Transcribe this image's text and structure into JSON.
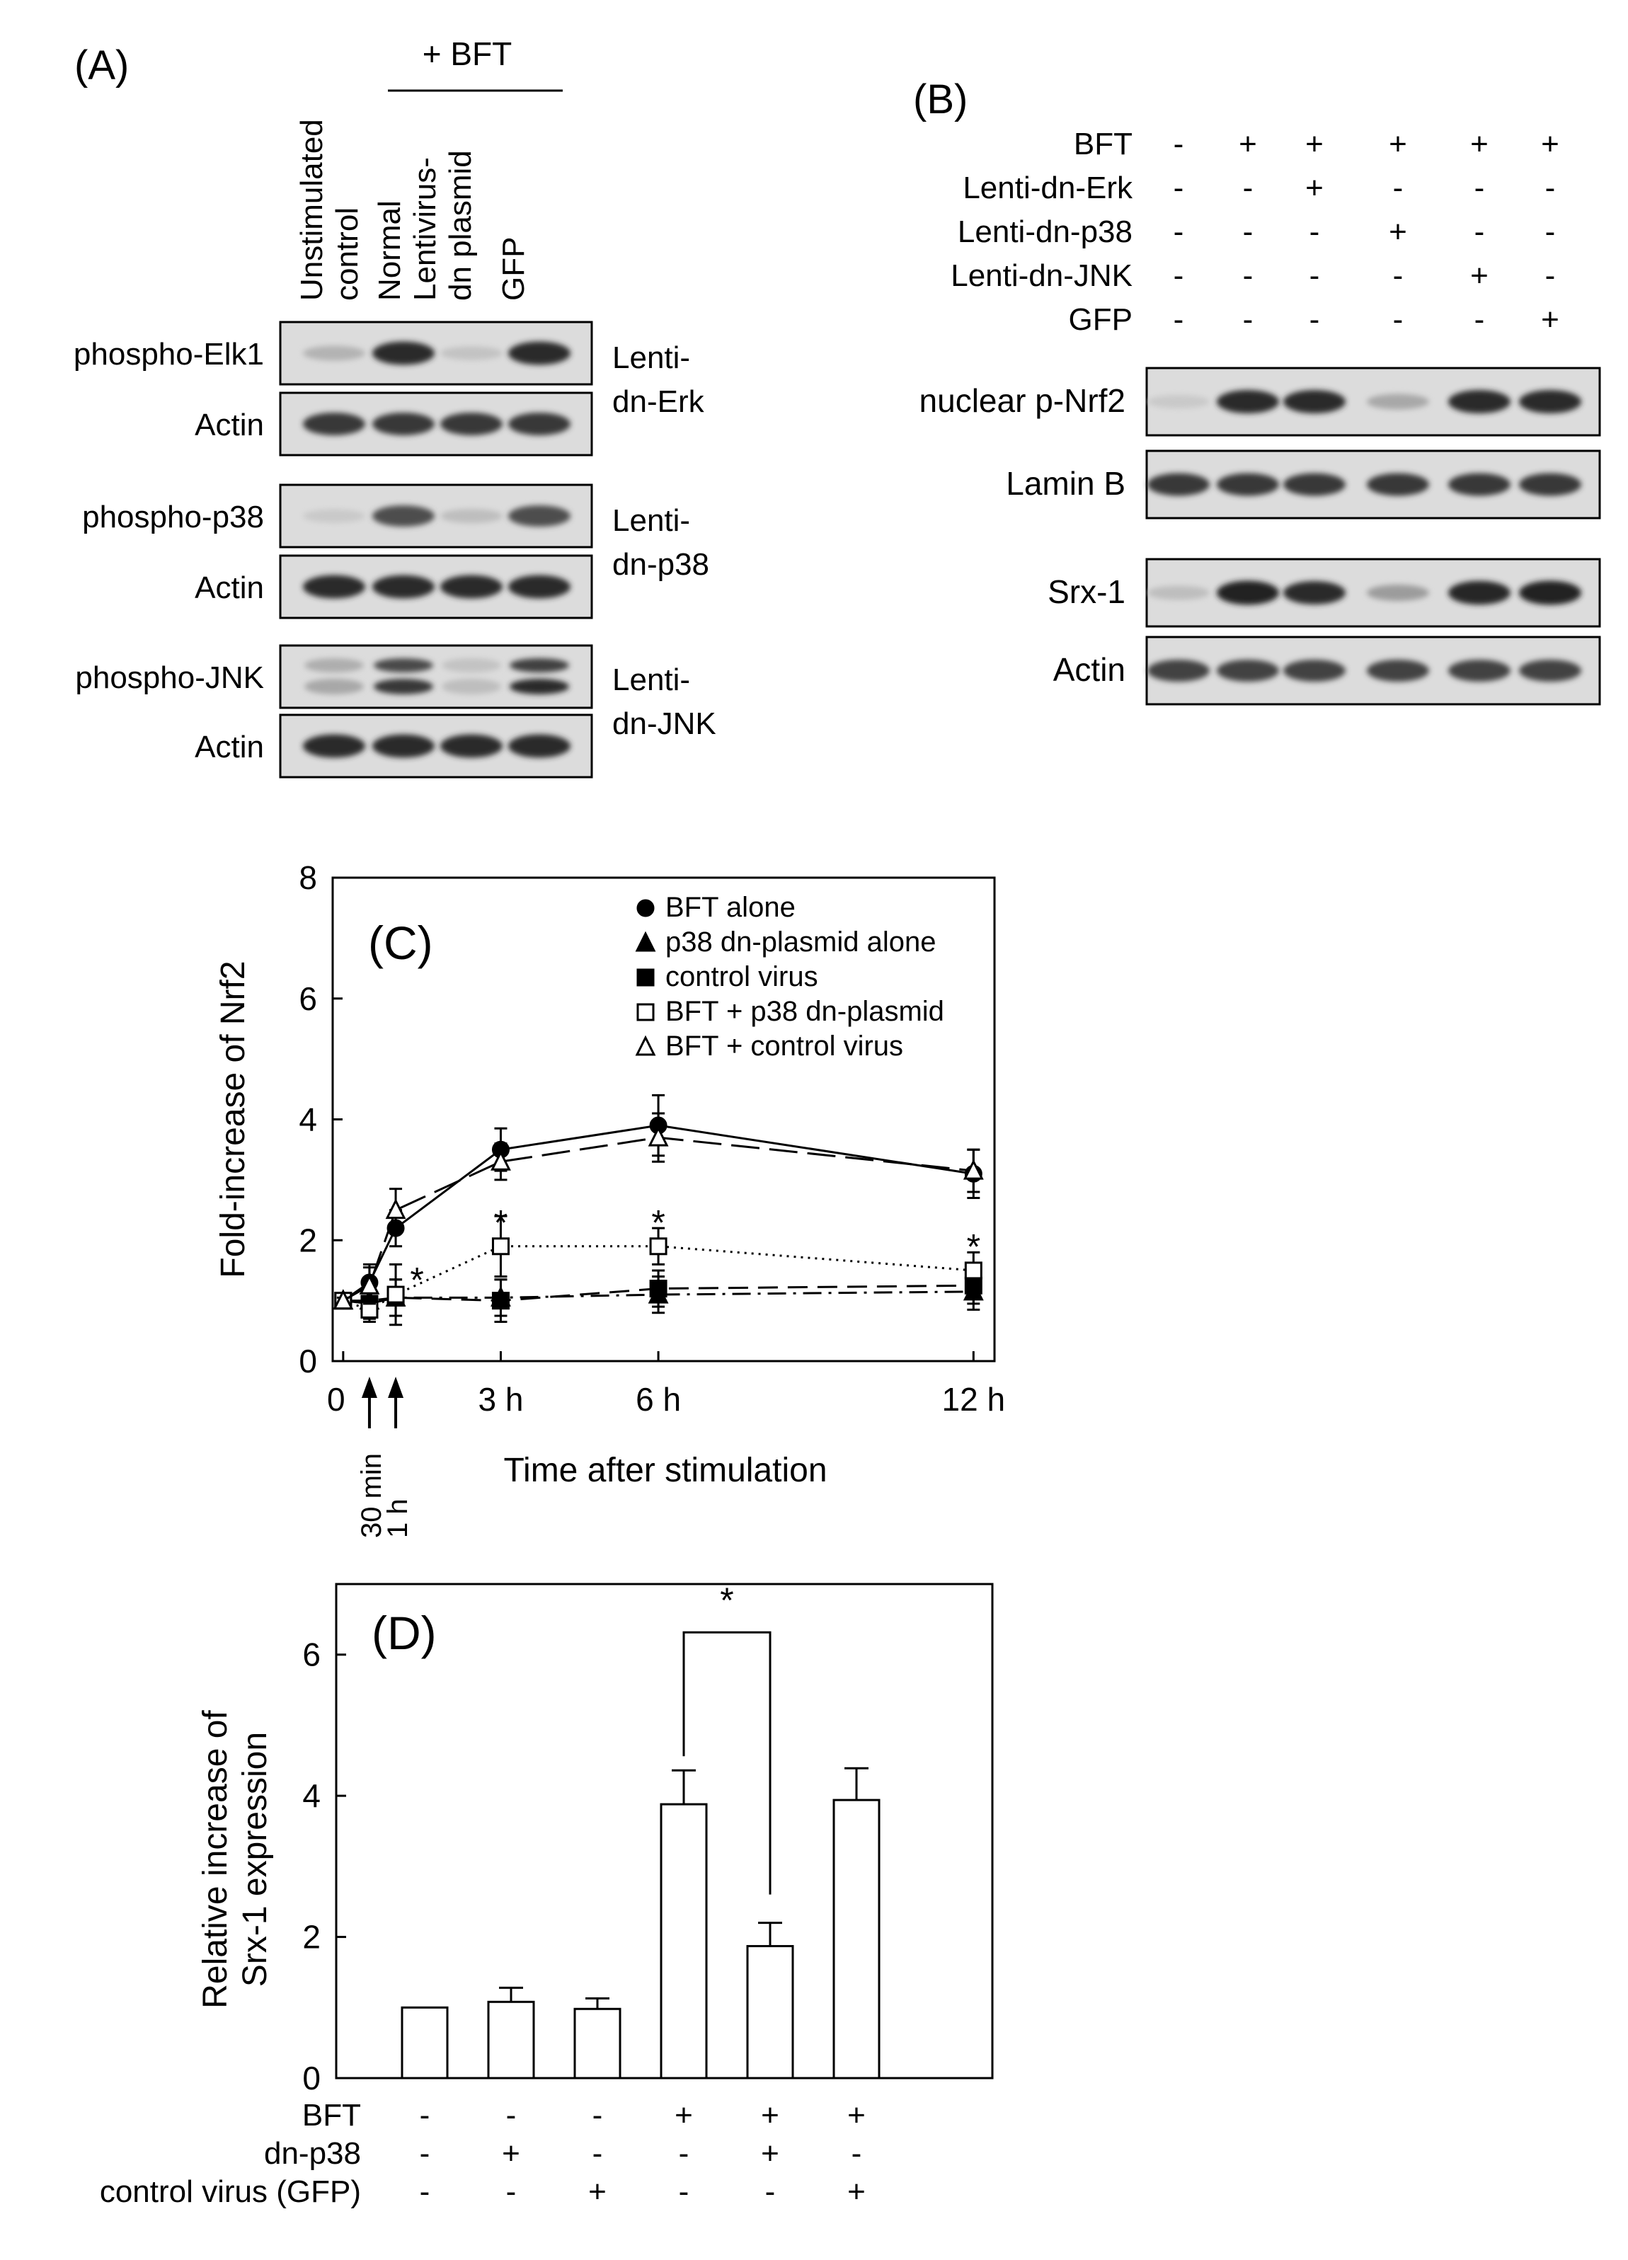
{
  "panel_a": {
    "label": "(A)",
    "bft_group_label": "+ BFT",
    "lanes": [
      [
        "Unstimulated",
        "control"
      ],
      [
        "Normal"
      ],
      [
        "Lentivirus-",
        "dn plasmid"
      ],
      [
        "GFP"
      ]
    ],
    "rows": [
      {
        "label": "phospho-Elk1",
        "bands": [
          0.25,
          0.85,
          0.18,
          0.85
        ],
        "double": false
      },
      {
        "label": "Actin",
        "bands": [
          0.8,
          0.8,
          0.8,
          0.8
        ],
        "double": false
      },
      {
        "label": "phospho-p38",
        "bands": [
          0.15,
          0.7,
          0.2,
          0.7
        ],
        "double": false
      },
      {
        "label": "Actin",
        "bands": [
          0.85,
          0.85,
          0.85,
          0.85
        ],
        "double": false
      },
      {
        "label": "phospho-JNK",
        "bands": [
          0.3,
          0.8,
          0.2,
          0.85
        ],
        "double": true
      },
      {
        "label": "Actin",
        "bands": [
          0.85,
          0.85,
          0.85,
          0.85
        ],
        "double": false
      }
    ],
    "side_labels": [
      [
        "Lenti-",
        "dn-Erk"
      ],
      [
        "Lenti-",
        "dn-p38"
      ],
      [
        "Lenti-",
        "dn-JNK"
      ]
    ]
  },
  "panel_b": {
    "label": "(B)",
    "conditions": [
      {
        "label": "BFT",
        "signs": [
          "-",
          "+",
          "+",
          "+",
          "+",
          "+"
        ]
      },
      {
        "label": "Lenti-dn-Erk",
        "signs": [
          "-",
          "-",
          "+",
          "-",
          "-",
          "-"
        ]
      },
      {
        "label": "Lenti-dn-p38",
        "signs": [
          "-",
          "-",
          "-",
          "+",
          "-",
          "-"
        ]
      },
      {
        "label": "Lenti-dn-JNK",
        "signs": [
          "-",
          "-",
          "-",
          "-",
          "+",
          "-"
        ]
      },
      {
        "label": "GFP",
        "signs": [
          "-",
          "-",
          "-",
          "-",
          "-",
          "+"
        ]
      }
    ],
    "blots": [
      {
        "label": "nuclear p-Nrf2",
        "bands": [
          0.15,
          0.85,
          0.85,
          0.3,
          0.85,
          0.85
        ]
      },
      {
        "label": "Lamin B",
        "bands": [
          0.8,
          0.8,
          0.8,
          0.8,
          0.8,
          0.8
        ]
      },
      {
        "label": "Srx-1",
        "bands": [
          0.2,
          0.9,
          0.85,
          0.35,
          0.88,
          0.9
        ]
      },
      {
        "label": "Actin",
        "bands": [
          0.75,
          0.75,
          0.75,
          0.75,
          0.75,
          0.75
        ]
      }
    ]
  },
  "chart_data": [
    {
      "panel": "(C)",
      "type": "line",
      "xlabel": "Time after stimulation",
      "ylabel": "Fold-increase of Nrf2",
      "ylim": [
        0,
        8
      ],
      "yticks": [
        0,
        2,
        4,
        6,
        8
      ],
      "x_unit": "hours",
      "xlim": [
        -0.2,
        12.4
      ],
      "x_tick_labels": [
        {
          "x": 0,
          "label": "0"
        },
        {
          "x": 3,
          "label": "3 h"
        },
        {
          "x": 6,
          "label": "6 h"
        },
        {
          "x": 12,
          "label": "12 h"
        }
      ],
      "arrow_labels": [
        {
          "x": 0.5,
          "label": "30 min"
        },
        {
          "x": 1,
          "label": "1 h"
        }
      ],
      "x": [
        0,
        0.5,
        1,
        3,
        6,
        12
      ],
      "legend_position": "top-right",
      "series": [
        {
          "name": "BFT alone",
          "marker": "filled-circle",
          "line": "solid",
          "values": [
            1.0,
            1.3,
            2.2,
            3.5,
            3.9,
            3.1
          ],
          "errors": [
            0.05,
            0.3,
            0.3,
            0.35,
            0.5,
            0.4
          ]
        },
        {
          "name": "p38 dn-plasmid alone",
          "marker": "filled-triangle",
          "line": "dash-dot",
          "values": [
            1.0,
            1.0,
            1.05,
            1.05,
            1.1,
            1.15
          ],
          "errors": [
            0.05,
            0.3,
            0.3,
            0.3,
            0.3,
            0.3
          ]
        },
        {
          "name": "control virus",
          "marker": "filled-square",
          "line": "dashed",
          "values": [
            1.0,
            0.95,
            1.05,
            1.0,
            1.2,
            1.25
          ],
          "errors": [
            0.05,
            0.2,
            0.3,
            0.35,
            0.3,
            0.3
          ]
        },
        {
          "name": "BFT + p38 dn-plasmid",
          "marker": "open-square",
          "line": "dotted",
          "values": [
            1.0,
            0.85,
            1.1,
            1.9,
            1.9,
            1.5
          ],
          "errors": [
            0.05,
            0.2,
            0.5,
            0.5,
            0.3,
            0.3
          ]
        },
        {
          "name": "BFT + control virus",
          "marker": "open-triangle",
          "line": "long-dash",
          "values": [
            1.0,
            1.25,
            2.5,
            3.3,
            3.7,
            3.15
          ],
          "errors": [
            0.05,
            0.3,
            0.35,
            0.3,
            0.4,
            0.35
          ]
        }
      ],
      "significance_marks": [
        {
          "x": 1,
          "y": 1.4,
          "label": "*"
        },
        {
          "x": 3,
          "y": 2.35,
          "label": "*"
        },
        {
          "x": 6,
          "y": 2.35,
          "label": "*"
        },
        {
          "x": 12,
          "y": 1.95,
          "label": "*"
        }
      ]
    },
    {
      "panel": "(D)",
      "type": "bar",
      "ylabel": [
        "Relative increase of",
        "Srx-1 expression"
      ],
      "ylim": [
        0,
        7
      ],
      "yticks": [
        0,
        2,
        4,
        6
      ],
      "values": [
        1.0,
        1.08,
        0.98,
        3.88,
        1.87,
        3.94
      ],
      "errors": [
        0.0,
        0.2,
        0.15,
        0.48,
        0.33,
        0.45
      ],
      "row_labels": [
        {
          "label": "BFT",
          "signs": [
            "-",
            "-",
            "-",
            "+",
            "+",
            "+"
          ]
        },
        {
          "label": "dn-p38",
          "signs": [
            "-",
            "+",
            "-",
            "-",
            "+",
            "-"
          ]
        },
        {
          "label": "control virus (GFP)",
          "signs": [
            "-",
            "-",
            "+",
            "-",
            "-",
            "+"
          ]
        }
      ],
      "significance": {
        "from": 3,
        "to": 4,
        "label": "*"
      }
    }
  ]
}
